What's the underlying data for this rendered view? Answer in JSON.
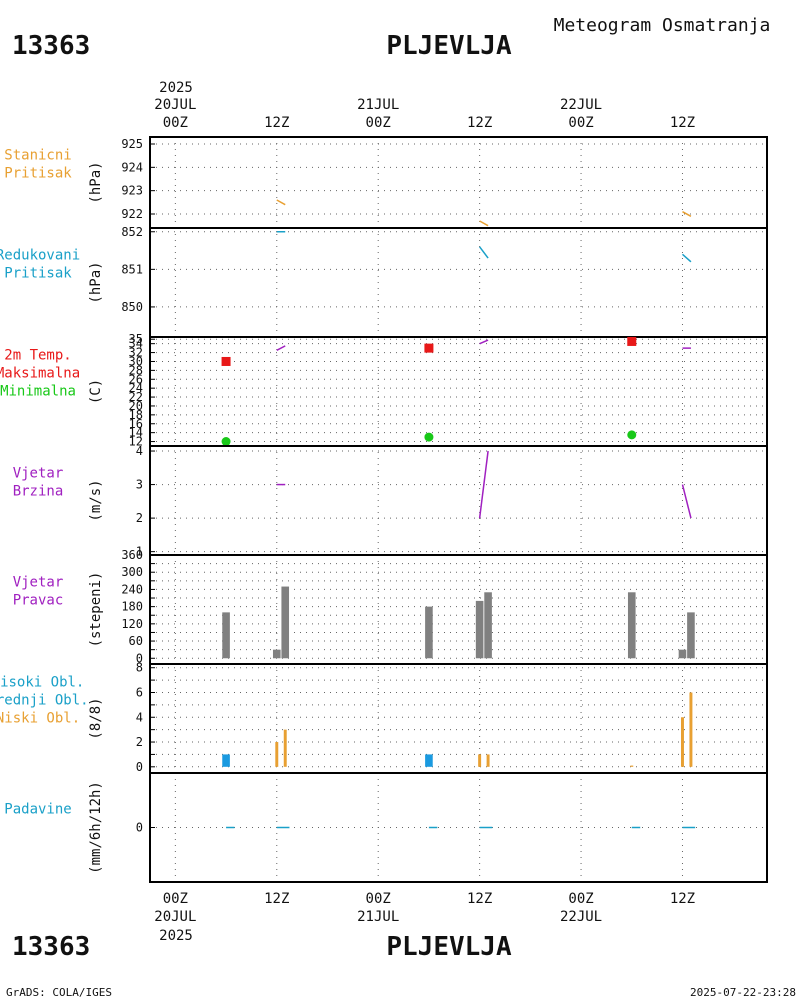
{
  "header": {
    "station_id": "13363",
    "station_name": "PLJEVLJA",
    "meteogram_title": "Meteogram Osmatranja"
  },
  "footer": {
    "station_id": "13363",
    "station_name": "PLJEVLJA",
    "credit": "GrADS: COLA/IGES",
    "timestamp": "2025-07-22-23:28"
  },
  "time_axis": {
    "top_year": "2025",
    "bottom_year": "2025",
    "ticks": [
      {
        "hour": 0,
        "label": "00Z",
        "date": "20JUL"
      },
      {
        "hour": 12,
        "label": "12Z",
        "date": ""
      },
      {
        "hour": 24,
        "label": "00Z",
        "date": "21JUL"
      },
      {
        "hour": 36,
        "label": "12Z",
        "date": ""
      },
      {
        "hour": 48,
        "label": "00Z",
        "date": "22JUL"
      },
      {
        "hour": 60,
        "label": "12Z",
        "date": ""
      }
    ],
    "range_hours": [
      -3,
      70
    ]
  },
  "colors": {
    "orange": "#e8a032",
    "cyan": "#1aa0c8",
    "red": "#e81818",
    "green": "#18c818",
    "purple": "#a020c0",
    "gray": "#808080",
    "blue": "#1a9ae0"
  },
  "chart_data": [
    {
      "id": "stanicni",
      "type": "line",
      "labels": [
        "Stanicni",
        "Pritisak"
      ],
      "label_colors": [
        "orange",
        "orange"
      ],
      "ylabel": "(hPa)",
      "ylim": [
        921.4,
        925.3
      ],
      "yticks": [
        922,
        923,
        924,
        925
      ],
      "series": [
        {
          "name": "Stanicni Pritisak",
          "color": "orange",
          "segments": [
            [
              [
                12.0,
                922.6
              ],
              [
                13.0,
                922.4
              ]
            ],
            [
              [
                36.0,
                921.7
              ],
              [
                37.0,
                921.5
              ]
            ],
            [
              [
                60.0,
                922.1
              ],
              [
                61.0,
                921.9
              ]
            ]
          ]
        }
      ]
    },
    {
      "id": "redukovani",
      "type": "line",
      "labels": [
        "Redukovani",
        "Pritisak"
      ],
      "label_colors": [
        "cyan",
        "cyan"
      ],
      "ylabel": "(hPa)",
      "ylim": [
        849.2,
        852.1
      ],
      "yticks": [
        850,
        851,
        852
      ],
      "series": [
        {
          "name": "Redukovani Pritisak",
          "color": "cyan",
          "segments": [
            [
              [
                12.0,
                852.0
              ],
              [
                13.0,
                852.0
              ]
            ],
            [
              [
                36.0,
                851.6
              ],
              [
                37.0,
                851.3
              ]
            ],
            [
              [
                60.0,
                851.4
              ],
              [
                61.0,
                851.2
              ]
            ]
          ]
        }
      ]
    },
    {
      "id": "temperatura",
      "type": "scatter",
      "labels": [
        "2m Temp.",
        "Maksimalna",
        "Minimalna"
      ],
      "label_colors": [
        "red",
        "red",
        "green"
      ],
      "ylabel": "(C)",
      "ylim": [
        11,
        35.5
      ],
      "yticks": [
        12,
        14,
        16,
        18,
        20,
        22,
        24,
        26,
        28,
        30,
        32,
        34,
        35
      ],
      "ytick_labels": [
        "12",
        "14",
        "16",
        "18",
        "20",
        "22",
        "24",
        "26",
        "28",
        "30",
        "32",
        "34",
        "35"
      ],
      "series": [
        {
          "name": "2m Temp.",
          "color": "purple",
          "segments": [
            [
              [
                12.0,
                32.5
              ],
              [
                13.0,
                33.5
              ]
            ],
            [
              [
                36.0,
                34.0
              ],
              [
                37.0,
                34.8
              ]
            ],
            [
              [
                60.0,
                33.0
              ],
              [
                61.0,
                33.0
              ]
            ]
          ]
        },
        {
          "name": "Maksimalna",
          "color": "red",
          "marker": "square",
          "points": [
            [
              6,
              30.0
            ],
            [
              30,
              33.0
            ],
            [
              54,
              34.5
            ]
          ]
        },
        {
          "name": "Minimalna",
          "color": "green",
          "marker": "circle",
          "points": [
            [
              6,
              12.0
            ],
            [
              30,
              13.0
            ],
            [
              54,
              13.5
            ]
          ]
        }
      ]
    },
    {
      "id": "brzina",
      "type": "line",
      "labels": [
        "Vjetar",
        "Brzina"
      ],
      "label_colors": [
        "purple",
        "purple"
      ],
      "ylabel": "(m/s)",
      "ylim": [
        0.9,
        4.15
      ],
      "yticks": [
        1,
        2,
        3,
        4
      ],
      "series": [
        {
          "name": "Vjetar Brzina",
          "color": "purple",
          "segments": [
            [
              [
                12.0,
                3.0
              ],
              [
                13.0,
                3.0
              ]
            ],
            [
              [
                36.0,
                2.0
              ],
              [
                37.0,
                4.0
              ]
            ],
            [
              [
                60.0,
                3.0
              ],
              [
                61.0,
                2.0
              ]
            ]
          ]
        }
      ]
    },
    {
      "id": "pravac",
      "type": "bar",
      "labels": [
        "Vjetar",
        "Pravac"
      ],
      "label_colors": [
        "purple",
        "purple"
      ],
      "ylabel": "(stepeni)",
      "ylim": [
        -20,
        360
      ],
      "yticks": [
        0,
        30,
        60,
        90,
        120,
        150,
        180,
        210,
        240,
        270,
        300,
        330,
        360
      ],
      "ytick_labels": [
        "0",
        "",
        "60",
        "",
        "120",
        "",
        "180",
        "",
        "240",
        "",
        "300",
        "",
        "360"
      ],
      "series": [
        {
          "name": "Vjetar Pravac",
          "color": "gray",
          "bar_width_hours": 0.9,
          "bars": [
            [
              6,
              160
            ],
            [
              12,
              30
            ],
            [
              13,
              250
            ],
            [
              30,
              180
            ],
            [
              36,
              200
            ],
            [
              37,
              230
            ],
            [
              54,
              230
            ],
            [
              60,
              30
            ],
            [
              61,
              160
            ]
          ]
        }
      ]
    },
    {
      "id": "oblaci",
      "type": "bar",
      "labels": [
        "Visoki Obl.",
        "Srednji Obl.",
        "Niski Obl."
      ],
      "label_colors": [
        "cyan",
        "cyan",
        "orange"
      ],
      "ylabel": "(8/8)",
      "ylim": [
        -0.5,
        8.3
      ],
      "yticks": [
        0,
        1,
        2,
        3,
        4,
        5,
        6,
        7,
        8
      ],
      "ytick_labels": [
        "0",
        "",
        "2",
        "",
        "4",
        "",
        "6",
        "",
        "8"
      ],
      "series": [
        {
          "name": "Visoki Obl.",
          "color": "blue",
          "bar_width_hours": 0.9,
          "bars": [
            [
              6,
              1.0
            ],
            [
              30,
              1.0
            ]
          ]
        },
        {
          "name": "Niski Obl.",
          "color": "orange",
          "bar_width_hours": 0.35,
          "bars": [
            [
              12,
              2.0
            ],
            [
              13,
              3.0
            ],
            [
              36,
              1.0
            ],
            [
              37,
              1.0
            ],
            [
              54,
              0.1
            ],
            [
              60,
              4.0
            ],
            [
              61,
              6.0
            ]
          ]
        }
      ]
    },
    {
      "id": "padavine",
      "type": "bar",
      "labels": [
        "Padavine"
      ],
      "label_colors": [
        "cyan"
      ],
      "ylabel": "(mm/6h/12h)",
      "ylim": [
        -5,
        5
      ],
      "yticks": [
        0
      ],
      "series": [
        {
          "name": "Padavine",
          "color": "cyan",
          "segments": [
            [
              [
                6.0,
                0
              ],
              [
                7.0,
                0
              ]
            ],
            [
              [
                12.0,
                0
              ],
              [
                13.5,
                0
              ]
            ],
            [
              [
                30.0,
                0
              ],
              [
                31.0,
                0
              ]
            ],
            [
              [
                36.0,
                0
              ],
              [
                37.5,
                0
              ]
            ],
            [
              [
                54.0,
                0
              ],
              [
                55.0,
                0
              ]
            ],
            [
              [
                60.0,
                0
              ],
              [
                61.5,
                0
              ]
            ]
          ]
        }
      ]
    }
  ]
}
